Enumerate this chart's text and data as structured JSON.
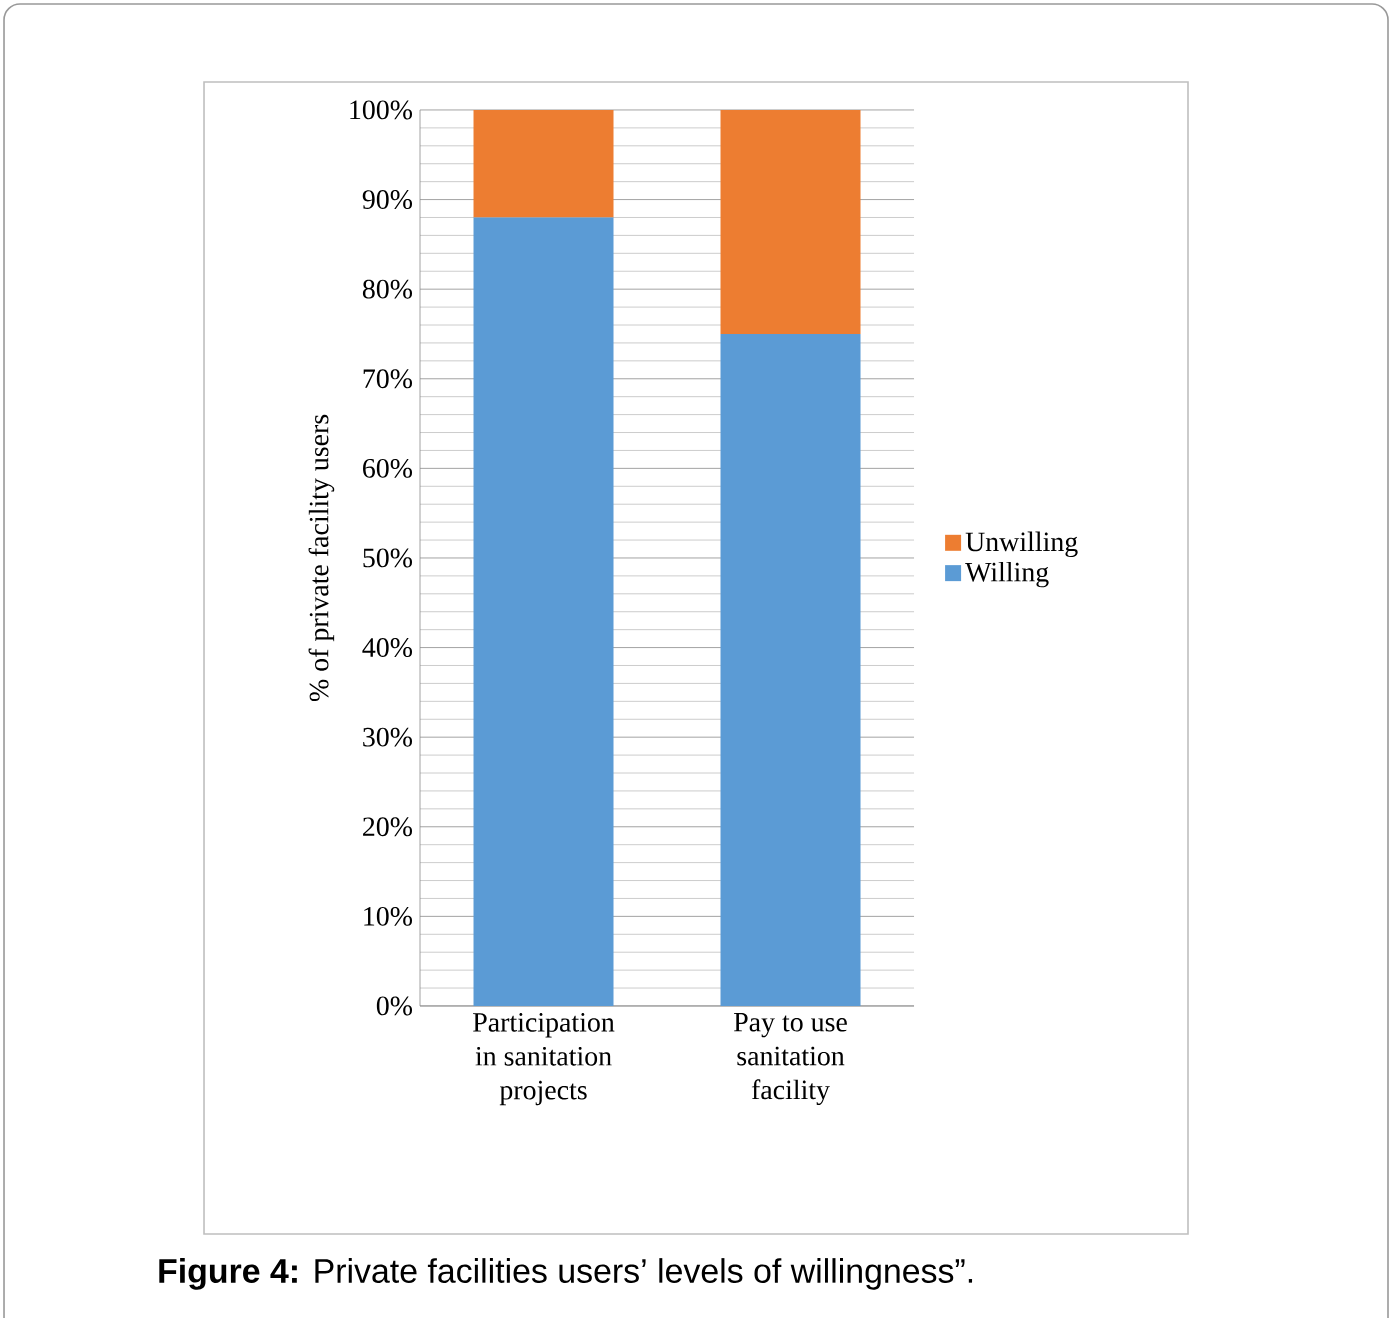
{
  "chart_data": {
    "type": "bar",
    "stacked": true,
    "ylabel": "% of private facility users",
    "categories": [
      "Participation\nin sanitation\nprojects",
      "Pay to use\nsanitation\nfacility"
    ],
    "series": [
      {
        "name": "Willing",
        "color": "#5b9bd5",
        "values": [
          88,
          75
        ]
      },
      {
        "name": "Unwilling",
        "color": "#ed7d31",
        "values": [
          12,
          25
        ]
      }
    ],
    "ylim": [
      0,
      100
    ],
    "yticks": [
      {
        "value": 0,
        "label": "0%"
      },
      {
        "value": 10,
        "label": "10%"
      },
      {
        "value": 20,
        "label": "20%"
      },
      {
        "value": 30,
        "label": "30%"
      },
      {
        "value": 40,
        "label": "40%"
      },
      {
        "value": 50,
        "label": "50%"
      },
      {
        "value": 60,
        "label": "60%"
      },
      {
        "value": 70,
        "label": "70%"
      },
      {
        "value": 80,
        "label": "80%"
      },
      {
        "value": 90,
        "label": "90%"
      },
      {
        "value": 100,
        "label": "100%"
      }
    ],
    "grid": "y",
    "legend": "right",
    "annotations": [
      "**Figure 4:** Private facilities users’ levels of willingness”."
    ]
  }
}
